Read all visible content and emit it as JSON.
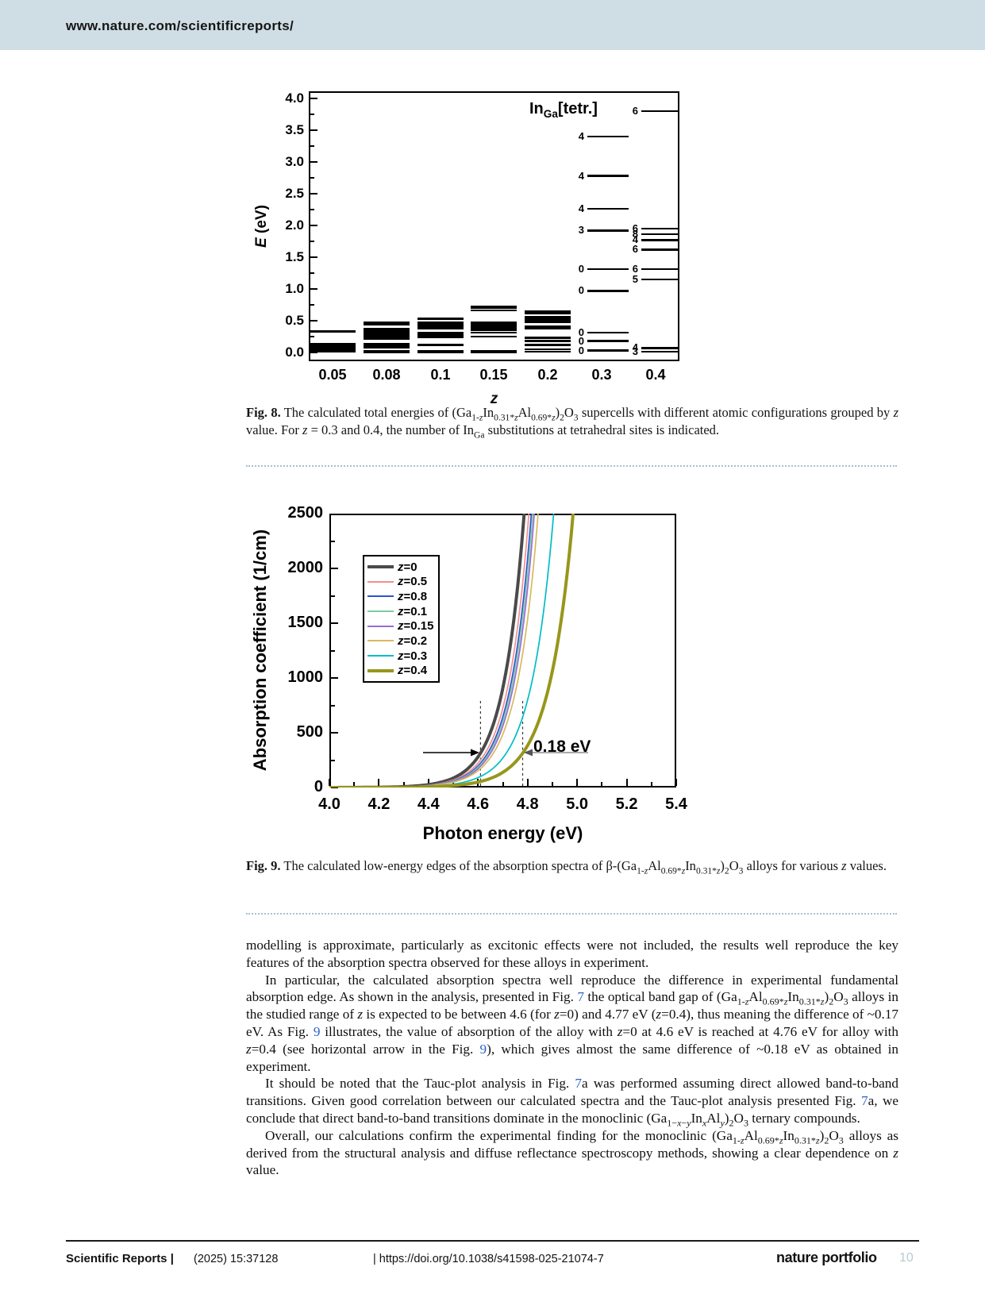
{
  "header": {
    "url": "www.nature.com/scientificreports/"
  },
  "captions": {
    "fig8_label": "Fig. 8.",
    "fig8_text": "  The calculated total energies of (Ga_{1-//z//}In_{0.31*//z//}Al_{0.69*//z//})_{2}O_{3} supercells with different atomic configurations grouped by //z// value. For //z// = 0.3 and 0.4, the number of In_{Ga} substitutions at tetrahedral sites is indicated.",
    "fig9_label": "Fig. 9.",
    "fig9_text": "  The calculated low-energy edges of the absorption spectra of β-(Ga_{1-//z//}Al_{0.69*//z//}In_{0.31*//z//})_{2}O_{3} alloys for various //z// values."
  },
  "chart_data": [
    {
      "id": "fig8",
      "type": "energy-levels",
      "title": "",
      "xlabel": "z",
      "ylabel": "//E// (eV)",
      "ylim": [
        0.0,
        4.0
      ],
      "yticks": [
        "0.0",
        "0.5",
        "1.0",
        "1.5",
        "2.0",
        "2.5",
        "3.0",
        "3.5",
        "4.0"
      ],
      "annotation": "In_{Ga}[tetr.]",
      "grid": false,
      "columns": [
        {
          "z": "0.05",
          "levels": [
            0.33,
            0.13,
            0.11,
            0.09,
            0.07,
            0.05,
            0.03,
            0.01
          ]
        },
        {
          "z": "0.08",
          "levels": [
            0.47,
            0.44,
            0.37,
            0.34,
            0.32,
            0.28,
            0.25,
            0.22,
            0.13,
            0.1,
            0.08,
            0.02,
            0.0
          ]
        },
        {
          "z": "0.1",
          "levels": [
            0.53,
            0.47,
            0.44,
            0.41,
            0.38,
            0.31,
            0.28,
            0.26,
            0.24,
            0.12,
            0.02,
            0.0
          ]
        },
        {
          "z": "0.15",
          "levels": [
            0.72,
            0.7,
            0.66,
            0.47,
            0.45,
            0.43,
            0.41,
            0.4,
            0.38,
            0.36,
            0.35,
            0.31,
            0.25,
            0.02,
            0.0
          ]
        },
        {
          "z": "0.2",
          "levels": [
            0.65,
            0.62,
            0.56,
            0.53,
            0.5,
            0.48,
            0.41,
            0.38,
            0.23,
            0.18,
            0.12,
            0.05,
            0.01
          ]
        },
        {
          "z": "0.3",
          "labeled": [
            {
              "n": "4",
              "e": 3.4
            },
            {
              "n": "4",
              "e": 2.78
            },
            {
              "n": "4",
              "e": 2.26
            },
            {
              "n": "3",
              "e": 1.92
            },
            {
              "n": "0",
              "e": 1.31
            },
            {
              "n": "0",
              "e": 0.97
            },
            {
              "n": "0",
              "e": 0.31
            },
            {
              "n": "0",
              "e": 0.18
            },
            {
              "n": "0",
              "e": 0.03
            }
          ]
        },
        {
          "z": "0.4",
          "labeled": [
            {
              "n": "6",
              "e": 3.8
            },
            {
              "n": "6",
              "e": 1.95
            },
            {
              "n": "8",
              "e": 1.86
            },
            {
              "n": "4",
              "e": 1.77
            },
            {
              "n": "6",
              "e": 1.62
            },
            {
              "n": "6",
              "e": 1.31
            },
            {
              "n": "5",
              "e": 1.15
            },
            {
              "n": "4",
              "e": 0.07
            },
            {
              "n": "3",
              "e": 0.01
            }
          ]
        }
      ]
    },
    {
      "id": "fig9",
      "type": "line",
      "title": "",
      "xlabel": "Photon energy (eV)",
      "ylabel": "Absorption coefficient (1/cm)",
      "xlim": [
        4.0,
        5.4
      ],
      "ylim": [
        0,
        2500
      ],
      "xticks": [
        "4.0",
        "4.2",
        "4.4",
        "4.6",
        "4.8",
        "5.0",
        "5.2",
        "5.4"
      ],
      "yticks": [
        "0",
        "500",
        "1000",
        "1500",
        "2000",
        "2500"
      ],
      "grid": false,
      "legend_position": "upper-left-inside",
      "annotation": {
        "text": "0.18 eV",
        "x1": 4.61,
        "x2": 4.78,
        "y": 300
      },
      "series": [
        {
          "name": "z=0",
          "color": "#4a4a4a",
          "width": 4,
          "alpha_ref": 300,
          "e_ref": 4.606,
          "w": 0.085
        },
        {
          "name": "z=0.5",
          "color": "#f28f8f",
          "width": 1.7,
          "alpha_ref": 300,
          "e_ref": 4.625,
          "w": 0.085
        },
        {
          "name": "z=0.8",
          "color": "#2b55cd",
          "width": 1.7,
          "alpha_ref": 300,
          "e_ref": 4.635,
          "w": 0.085
        },
        {
          "name": "z=0.1",
          "color": "#7fcba4",
          "width": 1.7,
          "alpha_ref": 300,
          "e_ref": 4.641,
          "w": 0.085
        },
        {
          "name": "z=0.15",
          "color": "#9b6cd4",
          "width": 1.7,
          "alpha_ref": 300,
          "e_ref": 4.647,
          "w": 0.085
        },
        {
          "name": "z=0.2",
          "color": "#d6ba5e",
          "width": 1.7,
          "alpha_ref": 300,
          "e_ref": 4.658,
          "w": 0.087
        },
        {
          "name": "z=0.3",
          "color": "#00bdc4",
          "width": 1.7,
          "alpha_ref": 300,
          "e_ref": 4.71,
          "w": 0.092
        },
        {
          "name": "z=0.4",
          "color": "#97961c",
          "width": 4,
          "alpha_ref": 300,
          "e_ref": 4.776,
          "w": 0.098
        }
      ]
    }
  ],
  "body": {
    "paragraphs": [
      {
        "indent": false,
        "text": "modelling is approximate, particularly as excitonic effects were not included, the results well reproduce the key features of the absorption spectra observed for these alloys in experiment."
      },
      {
        "indent": true,
        "text": "In particular, the calculated absorption spectra well reproduce the difference in experimental fundamental absorption edge. As shown in the analysis, presented in Fig. [[7]] the optical band gap of (Ga_{1-//z//}Al_{0.69*//z//}In_{0.31*//z//})_{2}O_{3} alloys in the studied range of //z// is expected to be between 4.6 (for //z//=0) and 4.77 eV (//z//=0.4), thus meaning the difference of ~0.17 eV. As Fig. [[9]] illustrates, the value of absorption of the alloy with //z//=0 at 4.6 eV is reached at 4.76 eV for alloy with //z//=0.4 (see horizontal arrow in the Fig. [[9]]), which gives almost the same difference of ~0.18 eV as obtained in experiment."
      },
      {
        "indent": true,
        "text": "It should be noted that the Tauc-plot analysis in Fig. [[7]]a was performed assuming direct allowed band-to-band transitions. Given good correlation between our calculated spectra and the Tauc-plot analysis presented Fig. [[7]]a, we conclude that direct band-to-band transitions dominate in the monoclinic (Ga_{1−//x//−//y//}In_{//x//}Al_{//y//})_{2}O_{3} ternary compounds."
      },
      {
        "indent": true,
        "text": "Overall, our calculations confirm the experimental finding for the monoclinic (Ga_{1-//z//}Al_{0.69*//z//}In_{0.31*//z//})_{2}O_{3} alloys as derived from the structural analysis and diffuse reflectance spectroscopy methods, showing a clear dependence on //z// value."
      }
    ]
  },
  "footer": {
    "journal": "Scientific Reports |",
    "issue": "(2025) 15:37128",
    "doi": "| https://doi.org/10.1038/s41598-025-21074-7",
    "brand": "nature portfolio",
    "page": "10"
  }
}
